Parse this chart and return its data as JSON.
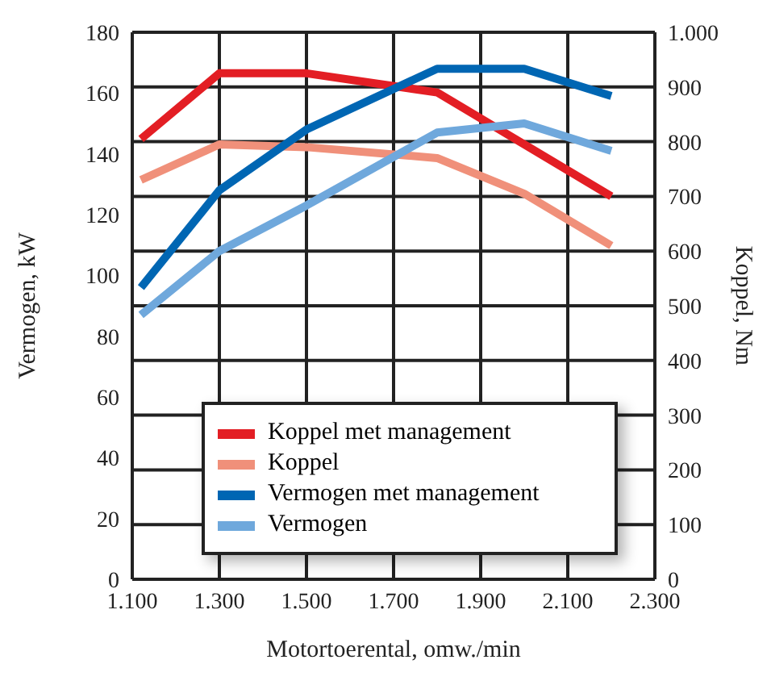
{
  "chart_data": {
    "type": "line",
    "xlabel": "Motortoerental, omw./min",
    "ylabel": "Vermogen, kW",
    "y2label": "Koppel, Nm",
    "xlim": [
      1100,
      2300
    ],
    "xticks": [
      {
        "value": 1100,
        "label": "1.100"
      },
      {
        "value": 1300,
        "label": "1.300"
      },
      {
        "value": 1500,
        "label": "1.500"
      },
      {
        "value": 1700,
        "label": "1.700"
      },
      {
        "value": 1900,
        "label": "1.900"
      },
      {
        "value": 2100,
        "label": "2.100"
      },
      {
        "value": 2300,
        "label": "2.300"
      }
    ],
    "ylim": [
      0,
      180
    ],
    "yticks": [
      0,
      20,
      40,
      60,
      80,
      100,
      120,
      140,
      160,
      180
    ],
    "y2lim": [
      0,
      1000
    ],
    "y2ticks": [
      0,
      100,
      200,
      300,
      400,
      500,
      600,
      700,
      800,
      900,
      {
        "value": 1000,
        "label": "1.000"
      }
    ],
    "grid": true,
    "legend": "bottom",
    "marker": "none",
    "line_style": "solid",
    "series": [
      {
        "name": "Koppel met management",
        "color": "#e31e24",
        "axis": "y2",
        "x": [
          1120,
          1300,
          1500,
          1800,
          2200
        ],
        "values": [
          805,
          925,
          925,
          890,
          700
        ]
      },
      {
        "name": "Koppel",
        "color": "#f0907a",
        "axis": "y2",
        "x": [
          1120,
          1300,
          1500,
          1800,
          2000,
          2200
        ],
        "values": [
          730,
          795,
          790,
          770,
          705,
          610
        ]
      },
      {
        "name": "Vermogen met management",
        "color": "#0066b3",
        "x": [
          1120,
          1300,
          1500,
          1800,
          2000,
          2200
        ],
        "values": [
          96,
          128,
          148,
          168,
          168,
          159
        ]
      },
      {
        "name": "Vermogen",
        "color": "#6fa8dc",
        "x": [
          1120,
          1300,
          1500,
          1800,
          2000,
          2200
        ],
        "values": [
          87,
          108,
          123,
          147,
          150,
          141
        ]
      }
    ]
  }
}
